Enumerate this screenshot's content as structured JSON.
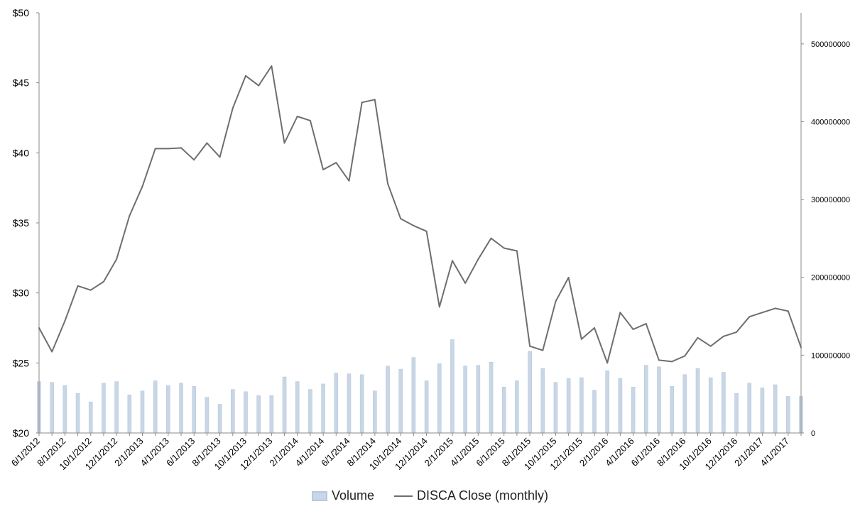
{
  "chart_data": {
    "type": "bar",
    "title": "",
    "categories": [
      "6/1/2012",
      "7/1/2012",
      "8/1/2012",
      "9/1/2012",
      "10/1/2012",
      "11/1/2012",
      "12/1/2012",
      "1/1/2013",
      "2/1/2013",
      "3/1/2013",
      "4/1/2013",
      "5/1/2013",
      "6/1/2013",
      "7/1/2013",
      "8/1/2013",
      "9/1/2013",
      "10/1/2013",
      "11/1/2013",
      "12/1/2013",
      "1/1/2014",
      "2/1/2014",
      "3/1/2014",
      "4/1/2014",
      "5/1/2014",
      "6/1/2014",
      "7/1/2014",
      "8/1/2014",
      "9/1/2014",
      "10/1/2014",
      "11/1/2014",
      "12/1/2014",
      "1/1/2015",
      "2/1/2015",
      "3/1/2015",
      "4/1/2015",
      "5/1/2015",
      "6/1/2015",
      "7/1/2015",
      "8/1/2015",
      "9/1/2015",
      "10/1/2015",
      "11/1/2015",
      "12/1/2015",
      "1/1/2016",
      "2/1/2016",
      "3/1/2016",
      "4/1/2016",
      "5/1/2016",
      "6/1/2016",
      "7/1/2016",
      "8/1/2016",
      "9/1/2016",
      "10/1/2016",
      "11/1/2016",
      "12/1/2016",
      "1/1/2017",
      "2/1/2017",
      "3/1/2017",
      "4/1/2017",
      "5/1/2017"
    ],
    "tick_labels": [
      "6/1/2012",
      "8/1/2012",
      "10/1/2012",
      "12/1/2012",
      "2/1/2013",
      "4/1/2013",
      "6/1/2013",
      "8/1/2013",
      "10/1/2013",
      "12/1/2013",
      "2/1/2014",
      "4/1/2014",
      "6/1/2014",
      "8/1/2014",
      "10/1/2014",
      "12/1/2014",
      "2/1/2015",
      "4/1/2015",
      "6/1/2015",
      "8/1/2015",
      "10/1/2015",
      "12/1/2015",
      "2/1/2016",
      "4/1/2016",
      "6/1/2016",
      "8/1/2016",
      "10/1/2016",
      "12/1/2016",
      "2/1/2017",
      "4/1/2017"
    ],
    "series": [
      {
        "name": "Volume",
        "type": "bar",
        "axis": "right",
        "color": "#c9d6e6",
        "values": [
          66000000,
          65000000,
          61000000,
          51000000,
          40000000,
          64000000,
          66000000,
          49000000,
          54000000,
          67000000,
          61000000,
          64000000,
          60000000,
          46000000,
          37000000,
          56000000,
          53000000,
          48000000,
          48000000,
          72000000,
          66000000,
          56000000,
          63000000,
          77000000,
          76000000,
          75000000,
          54000000,
          86000000,
          82000000,
          97000000,
          67000000,
          89000000,
          120000000,
          86000000,
          87000000,
          91000000,
          59000000,
          67000000,
          105000000,
          83000000,
          65000000,
          70000000,
          71000000,
          55000000,
          80000000,
          70000000,
          59000000,
          87000000,
          85000000,
          60000000,
          75000000,
          83000000,
          71000000,
          78000000,
          51000000,
          64000000,
          58000000,
          62000000,
          47000000,
          47000000
        ]
      },
      {
        "name": "DISCA Close (monthly)",
        "type": "line",
        "axis": "left",
        "color": "#6e6e6e",
        "values": [
          27.5,
          25.8,
          28.0,
          30.5,
          30.2,
          30.8,
          32.4,
          35.5,
          37.6,
          40.3,
          40.3,
          40.35,
          39.5,
          40.7,
          39.7,
          43.2,
          45.5,
          44.8,
          46.2,
          40.7,
          42.6,
          42.3,
          38.8,
          39.3,
          38.0,
          43.6,
          43.8,
          37.8,
          35.3,
          34.8,
          34.4,
          29.0,
          32.3,
          30.7,
          32.4,
          33.9,
          33.2,
          33.0,
          26.2,
          25.9,
          29.4,
          31.1,
          26.7,
          27.5,
          25.0,
          28.6,
          27.4,
          27.8,
          25.2,
          25.1,
          25.5,
          26.8,
          26.2,
          26.9,
          27.2,
          28.3,
          28.6,
          28.9,
          28.7,
          26.1
        ]
      }
    ],
    "y_left": {
      "min": 20,
      "max": 50,
      "ticks": [
        "$20",
        "$25",
        "$30",
        "$35",
        "$40",
        "$45",
        "$50"
      ],
      "tick_values": [
        20,
        25,
        30,
        35,
        40,
        45,
        50
      ]
    },
    "y_right": {
      "min": 0,
      "max": 540000000,
      "ticks": [
        "0",
        "100000000",
        "200000000",
        "300000000",
        "400000000",
        "500000000"
      ],
      "tick_values": [
        0,
        100000000,
        200000000,
        300000000,
        400000000,
        500000000
      ]
    },
    "grid": false,
    "legend_position": "bottom"
  },
  "legend": {
    "volume_label": "Volume",
    "close_label": "DISCA Close (monthly)"
  }
}
